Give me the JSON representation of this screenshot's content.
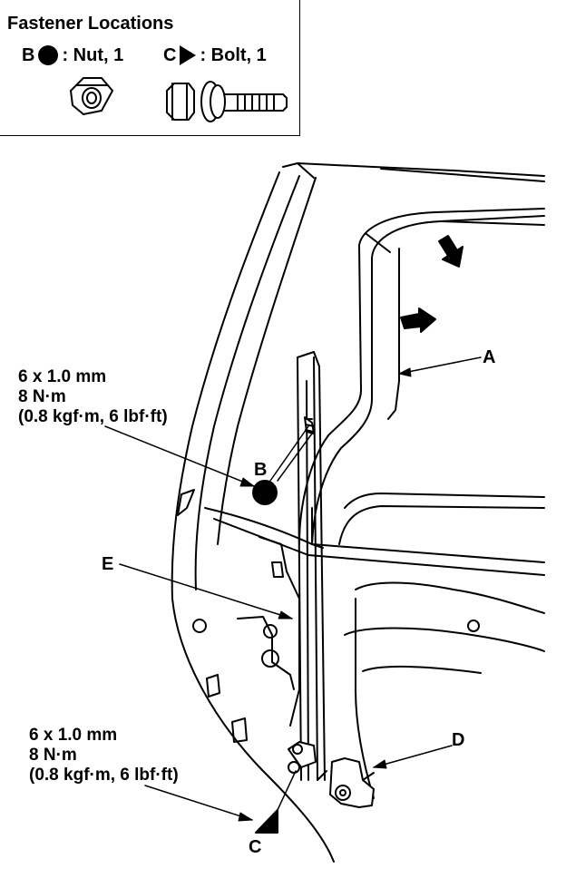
{
  "fastener_box": {
    "title": "Fastener Locations",
    "nut": {
      "letter": "B",
      "symbol": "dot",
      "text": ": Nut, 1"
    },
    "bolt": {
      "letter": "C",
      "symbol": "triangle",
      "text": ": Bolt, 1"
    }
  },
  "callout_b": {
    "size": "6 x 1.0 mm",
    "torque": "8 N·m",
    "imperial": "(0.8 kgf·m, 6 lbf·ft)"
  },
  "callout_c": {
    "size": "6 x 1.0 mm",
    "torque": "8 N·m",
    "imperial": "(0.8 kgf·m, 6 lbf·ft)"
  },
  "labels": {
    "a": "A",
    "b": "B",
    "c": "C",
    "d": "D",
    "e": "E"
  }
}
